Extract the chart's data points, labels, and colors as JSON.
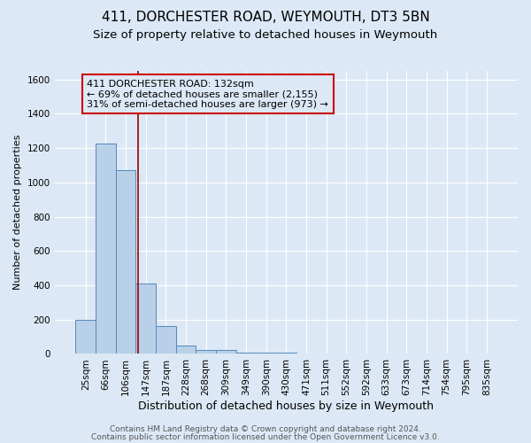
{
  "title1": "411, DORCHESTER ROAD, WEYMOUTH, DT3 5BN",
  "title2": "Size of property relative to detached houses in Weymouth",
  "xlabel": "Distribution of detached houses by size in Weymouth",
  "ylabel": "Number of detached properties",
  "bar_labels": [
    "25sqm",
    "66sqm",
    "106sqm",
    "147sqm",
    "187sqm",
    "228sqm",
    "268sqm",
    "309sqm",
    "349sqm",
    "390sqm",
    "430sqm",
    "471sqm",
    "511sqm",
    "552sqm",
    "592sqm",
    "633sqm",
    "673sqm",
    "714sqm",
    "754sqm",
    "795sqm",
    "835sqm"
  ],
  "bar_values": [
    200,
    1225,
    1070,
    410,
    165,
    50,
    25,
    22,
    10,
    10,
    10,
    0,
    0,
    0,
    0,
    0,
    0,
    0,
    0,
    0,
    0
  ],
  "bar_color": "#b8d0e8",
  "bar_edge_color": "#5588bb",
  "bar_width": 1.0,
  "ylim": [
    0,
    1650
  ],
  "yticks": [
    0,
    200,
    400,
    600,
    800,
    1000,
    1200,
    1400,
    1600
  ],
  "vline_x": 2.63,
  "vline_color": "#990000",
  "annotation_line1": "411 DORCHESTER ROAD: 132sqm",
  "annotation_line2": "← 69% of detached houses are smaller (2,155)",
  "annotation_line3": "31% of semi-detached houses are larger (973) →",
  "box_edge_color": "#cc0000",
  "background_color": "#dce8f5",
  "plot_bg_color": "#dce8f5",
  "grid_color": "#ffffff",
  "footer1": "Contains HM Land Registry data © Crown copyright and database right 2024.",
  "footer2": "Contains public sector information licensed under the Open Government Licence v3.0.",
  "title1_fontsize": 11,
  "title2_fontsize": 9.5,
  "xlabel_fontsize": 9,
  "ylabel_fontsize": 8,
  "tick_fontsize": 7.5,
  "annotation_fontsize": 8,
  "footer_fontsize": 6.5
}
